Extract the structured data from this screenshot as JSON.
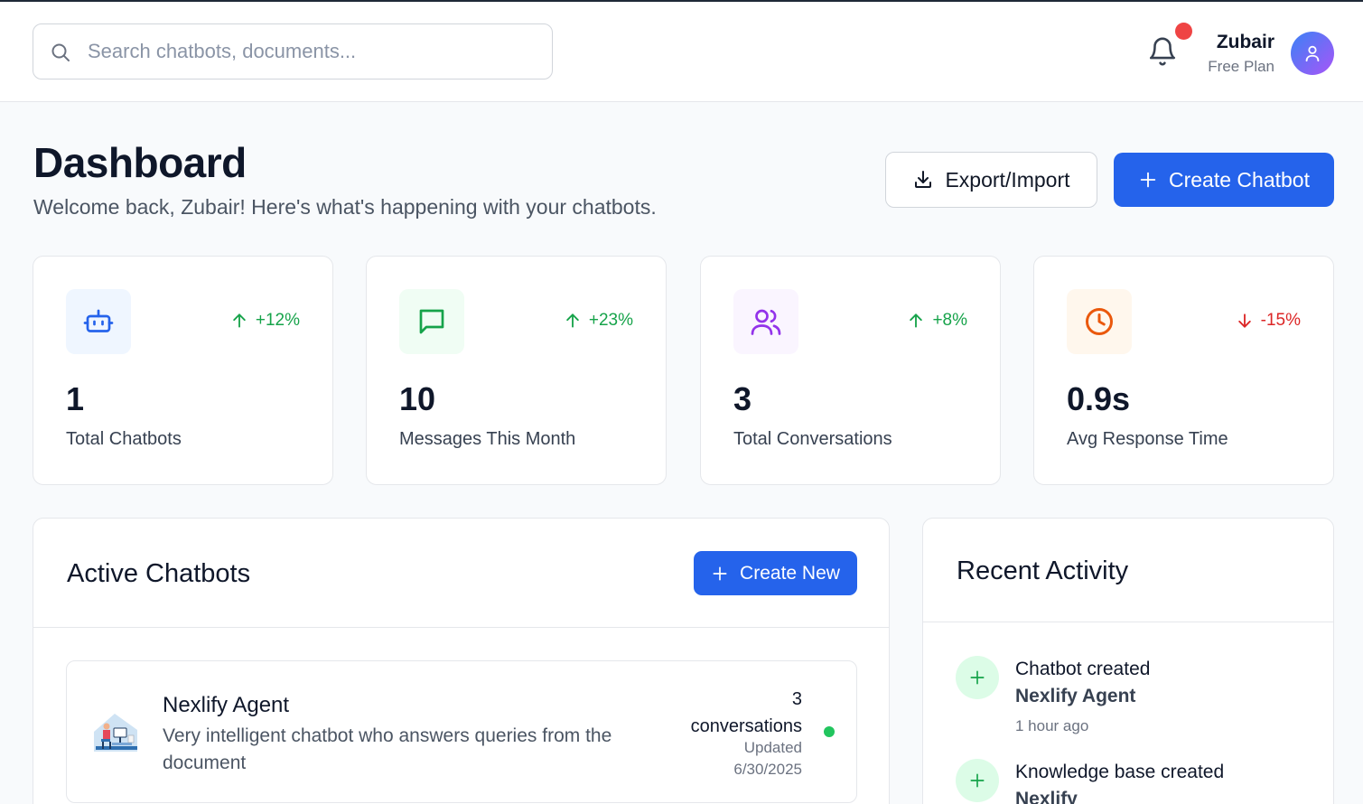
{
  "search": {
    "placeholder": "Search chatbots, documents..."
  },
  "user": {
    "name": "Zubair",
    "plan": "Free Plan"
  },
  "notifications": {
    "has_unread": true
  },
  "header": {
    "title": "Dashboard",
    "subtitle": "Welcome back, Zubair! Here's what's happening with your chatbots.",
    "export_label": "Export/Import",
    "create_label": "Create Chatbot"
  },
  "stats": [
    {
      "icon": "bot-icon",
      "delta": "+12%",
      "trend": "up",
      "value": "1",
      "label": "Total Chatbots",
      "color": "#2563eb",
      "bg": "#eff6ff"
    },
    {
      "icon": "message-icon",
      "delta": "+23%",
      "trend": "up",
      "value": "10",
      "label": "Messages This Month",
      "color": "#16a34a",
      "bg": "#f0fdf4"
    },
    {
      "icon": "users-icon",
      "delta": "+8%",
      "trend": "up",
      "value": "3",
      "label": "Total Conversations",
      "color": "#9333ea",
      "bg": "#faf5ff"
    },
    {
      "icon": "clock-icon",
      "delta": "-15%",
      "trend": "down",
      "value": "0.9s",
      "label": "Avg Response Time",
      "color": "#ea580c",
      "bg": "#fff7ed"
    }
  ],
  "colors": {
    "up": "#16a34a",
    "down": "#dc2626",
    "accent": "#2563eb",
    "status_active": "#22c55e"
  },
  "active_chatbots": {
    "title": "Active Chatbots",
    "create_new_label": "Create New",
    "items": [
      {
        "name": "Nexlify Agent",
        "description": "Very intelligent chatbot who answers queries from the document",
        "conversations_count": "3",
        "conversations_label": "conversations",
        "updated_label": "Updated",
        "updated_date": "6/30/2025",
        "status": "active"
      }
    ]
  },
  "recent_activity": {
    "title": "Recent Activity",
    "items": [
      {
        "title": "Chatbot created",
        "subject": "Nexlify Agent",
        "time": "1 hour ago"
      },
      {
        "title": "Knowledge base created",
        "subject": "Nexlify",
        "time": ""
      }
    ]
  }
}
